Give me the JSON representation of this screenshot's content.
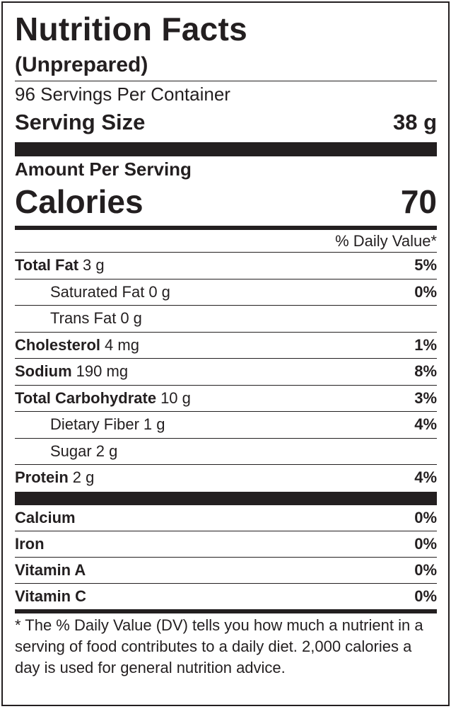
{
  "label": {
    "title": "Nutrition Facts",
    "subtitle": "(Unprepared)",
    "servings_per_container": "96 Servings Per Container",
    "serving_size_label": "Serving Size",
    "serving_size_value": "38 g",
    "amount_per_serving": "Amount Per Serving",
    "calories_label": "Calories",
    "calories_value": "70",
    "daily_value_header": "% Daily Value*",
    "nutrients": [
      {
        "name": "Total Fat",
        "amount": "3 g",
        "dv": "5%"
      },
      {
        "name": "Saturated Fat",
        "amount": "0 g",
        "dv": "0%"
      },
      {
        "name": "Trans Fat",
        "amount": "0 g",
        "dv": ""
      },
      {
        "name": "Cholesterol",
        "amount": "4 mg",
        "dv": "1%"
      },
      {
        "name": "Sodium",
        "amount": "190 mg",
        "dv": "8%"
      },
      {
        "name": "Total Carbohydrate",
        "amount": "10 g",
        "dv": "3%"
      },
      {
        "name": "Dietary Fiber",
        "amount": "1 g",
        "dv": "4%"
      },
      {
        "name": "Sugar",
        "amount": "2 g",
        "dv": ""
      },
      {
        "name": "Protein",
        "amount": "2 g",
        "dv": "4%"
      }
    ],
    "vitamins": [
      {
        "name": "Calcium",
        "dv": "0%"
      },
      {
        "name": "Iron",
        "dv": "0%"
      },
      {
        "name": "Vitamin A",
        "dv": "0%"
      },
      {
        "name": "Vitamin C",
        "dv": "0%"
      }
    ],
    "footnote": "* The % Daily Value (DV) tells you how much a nutrient in a serving of food contributes to a daily diet. 2,000 calories a day is used for general nutrition advice."
  },
  "colors": {
    "ink": "#231f20",
    "background": "#ffffff"
  }
}
